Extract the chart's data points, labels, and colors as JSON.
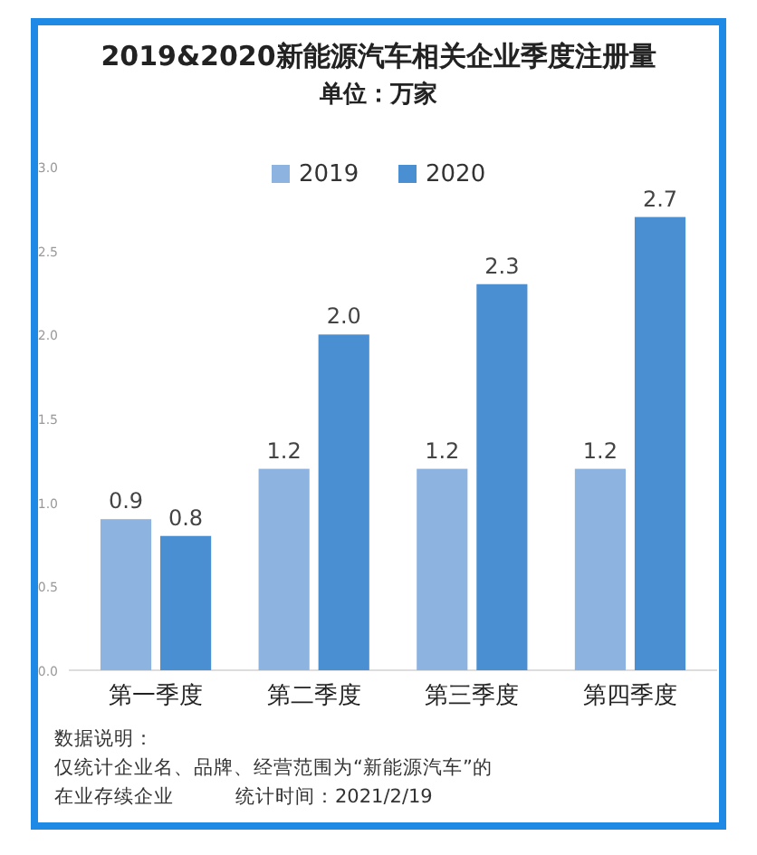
{
  "chart_data": {
    "type": "bar",
    "title": "2019&2020新能源汽车相关企业季度注册量",
    "subtitle": "单位：万家",
    "categories": [
      "第一季度",
      "第二季度",
      "第三季度",
      "第四季度"
    ],
    "series": [
      {
        "name": "2019",
        "color": "#8db3e0",
        "values": [
          0.9,
          1.2,
          1.2,
          1.2
        ],
        "value_labels": [
          "0.9",
          "1.2",
          "1.2",
          "1.2"
        ]
      },
      {
        "name": "2020",
        "color": "#4a8fd2",
        "values": [
          0.8,
          2.0,
          2.3,
          2.7
        ],
        "value_labels": [
          "0.8",
          "2.0",
          "2.3",
          "2.7"
        ]
      }
    ],
    "ylim": [
      0,
      3
    ],
    "yticks": [
      {
        "value": 0,
        "label": "0.0"
      },
      {
        "value": 0.5,
        "label": "0.5"
      },
      {
        "value": 1,
        "label": "1.0"
      },
      {
        "value": 1.5,
        "label": "1.5"
      },
      {
        "value": 2,
        "label": "2.0"
      },
      {
        "value": 2.5,
        "label": "2.5"
      },
      {
        "value": 3,
        "label": "3.0"
      }
    ],
    "legend": "top",
    "grid": false,
    "annotations": [
      "数据说明：",
      "仅统计企业名、品牌、经营范围为“新能源汽车”的",
      "在业存续企业",
      "统计时间：2021/2/19"
    ]
  }
}
